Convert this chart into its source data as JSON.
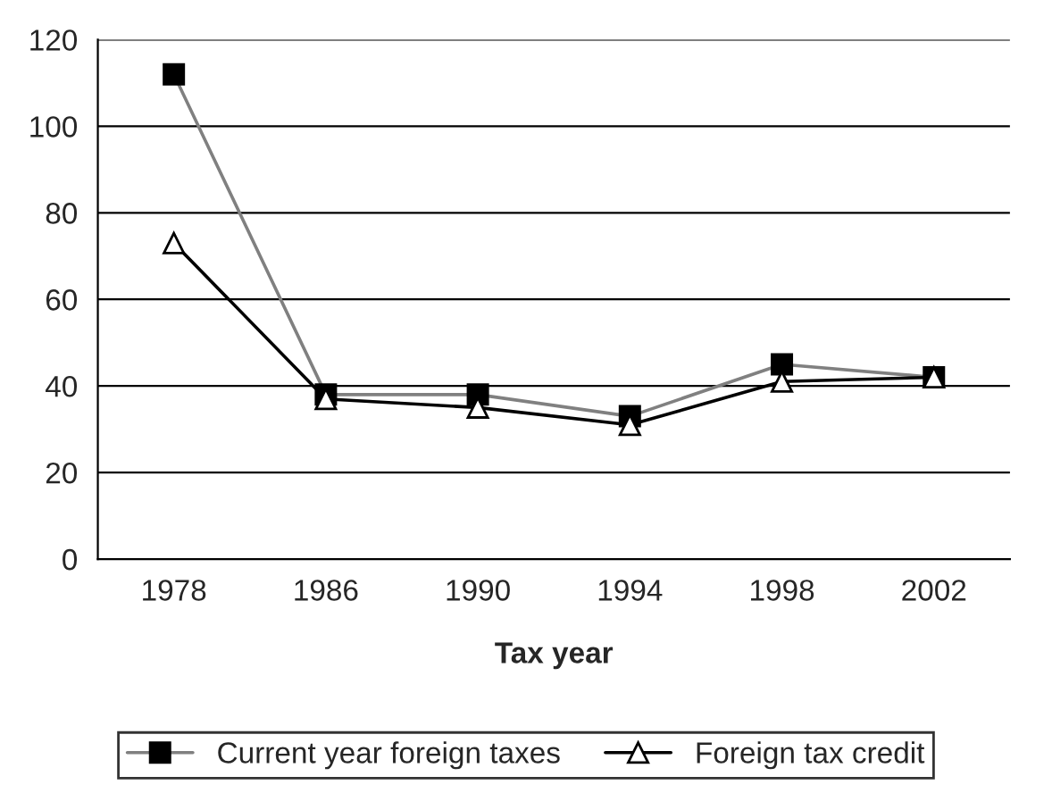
{
  "chart_data": {
    "type": "line",
    "xlabel": "Tax year",
    "categories": [
      "1978",
      "1986",
      "1990",
      "1994",
      "1998",
      "2002"
    ],
    "series": [
      {
        "name": "Current year foreign taxes",
        "color": "#808080",
        "marker": "square",
        "values": [
          112,
          38,
          38,
          33,
          45,
          42
        ]
      },
      {
        "name": "Foreign tax credit",
        "color": "#000000",
        "marker": "triangle",
        "values": [
          73,
          37,
          35,
          31,
          41,
          42
        ]
      }
    ],
    "ylim": [
      0,
      120
    ],
    "yticks": [
      0,
      20,
      40,
      60,
      80,
      100,
      120
    ],
    "grid": "y",
    "legend": "bottom"
  }
}
